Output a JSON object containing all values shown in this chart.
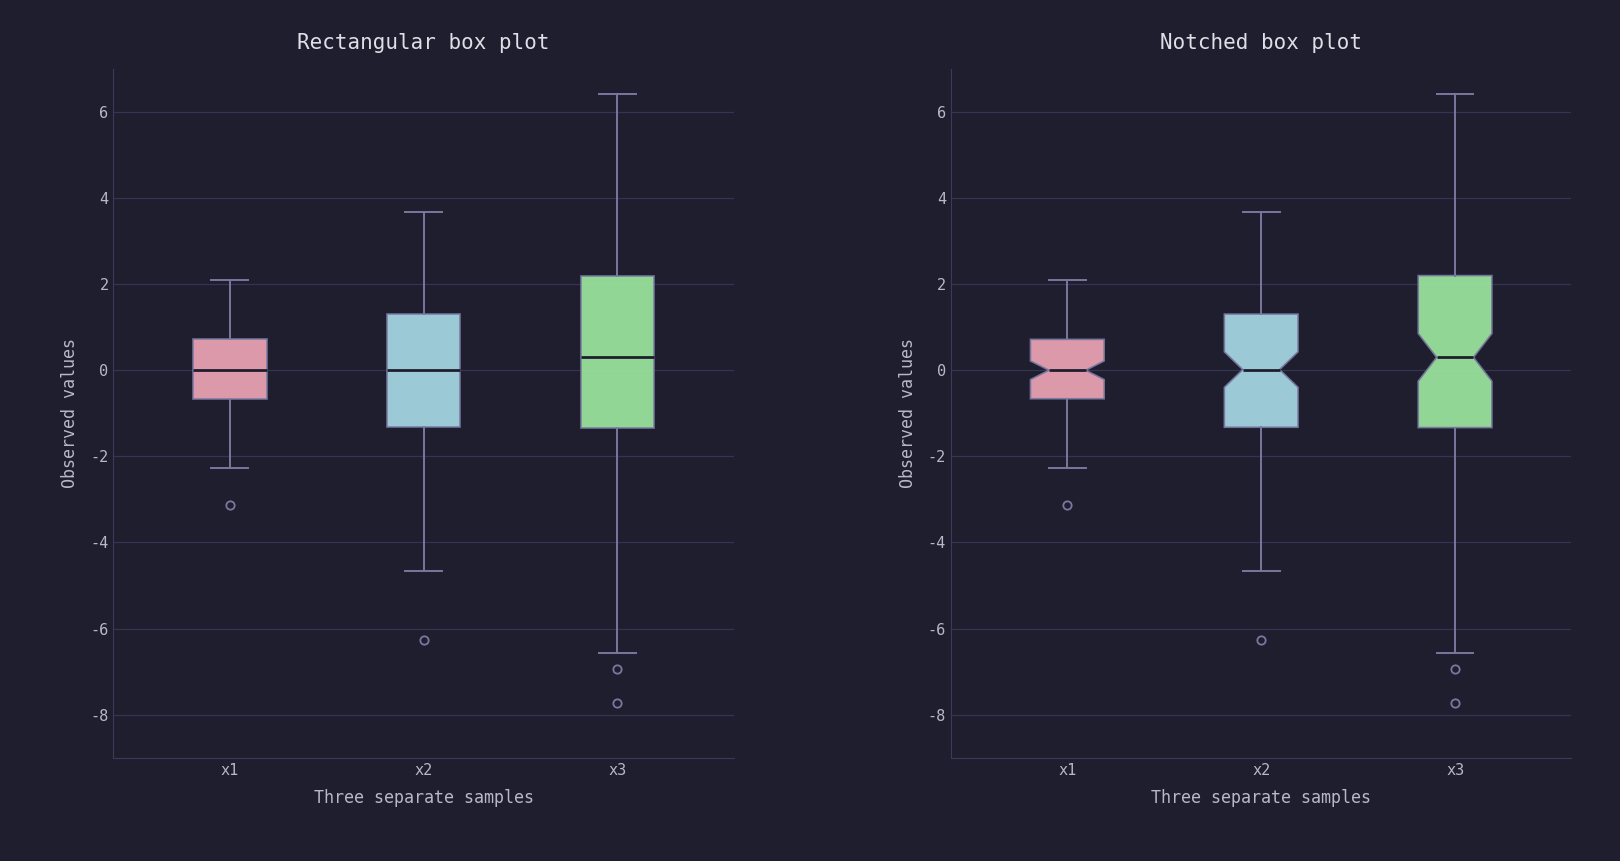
{
  "title1": "Rectangular box plot",
  "title2": "Notched box plot",
  "xlabel": "Three separate samples",
  "ylabel": "Observed values",
  "xlabels": [
    "x1",
    "x2",
    "x3"
  ],
  "ylim": [
    -9,
    7
  ],
  "yticks": [
    -8,
    -6,
    -4,
    -2,
    0,
    2,
    4,
    6
  ],
  "bg_color": "#1f1e2e",
  "grid_color": "#3b3a5c",
  "text_color": "#b8b8cc",
  "title_color": "#e0dfe8",
  "box_colors": [
    "#f2a7b8",
    "#aadde8",
    "#9eeba0"
  ],
  "median_color": "#1f1e2e",
  "whisker_color": "#7878a0",
  "flier_color": "#7878a0",
  "box_edge_color": "#7878a0",
  "random_seed": 19680801,
  "font_family": "monospace",
  "title_fontsize": 15,
  "label_fontsize": 12,
  "tick_fontsize": 11,
  "figsize": [
    16.2,
    8.61
  ],
  "dpi": 100
}
